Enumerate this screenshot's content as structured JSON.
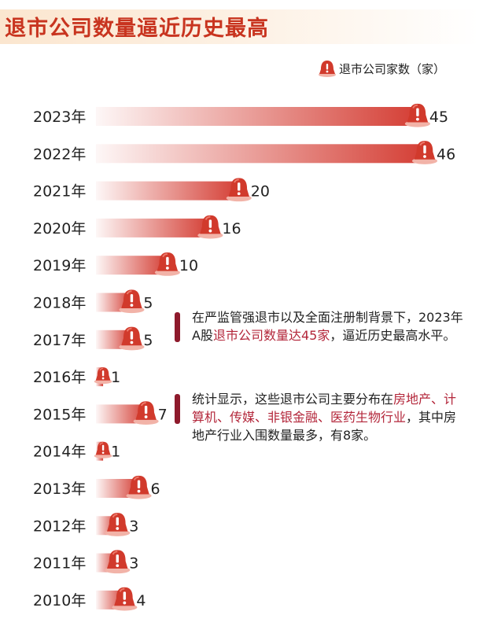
{
  "title": "退市公司数量逼近历史最高",
  "legend": {
    "label": "退市公司家数（家）",
    "icon": "alert-bell-icon",
    "color": "#d13a2c"
  },
  "colors": {
    "bar": "#d2342a",
    "title": "#c8341f",
    "note_mark": "#8e1a2c",
    "highlight": "#b3263a"
  },
  "chart_data": {
    "type": "bar",
    "orientation": "horizontal",
    "categories": [
      "2023年",
      "2022年",
      "2021年",
      "2020年",
      "2019年",
      "2018年",
      "2017年",
      "2016年",
      "2015年",
      "2014年",
      "2013年",
      "2012年",
      "2011年",
      "2010年"
    ],
    "series": [
      {
        "name": "退市公司家数（家）",
        "values": [
          45,
          46,
          20,
          16,
          10,
          5,
          5,
          1,
          7,
          1,
          6,
          3,
          3,
          4
        ]
      }
    ],
    "title": "退市公司数量逼近历史最高",
    "xlabel": "",
    "ylabel": "",
    "xlim": [
      0,
      46
    ],
    "grid": false,
    "legend_position": "top-right"
  },
  "notes": [
    {
      "parts": [
        {
          "text": "在严监管强退市以及全面注册制背景下，2023年A股",
          "highlight": false
        },
        {
          "text": "退市公司数量达45家",
          "highlight": true
        },
        {
          "text": "，逼近历史最高水平。",
          "highlight": false
        }
      ]
    },
    {
      "parts": [
        {
          "text": "统计显示，这些退市公司主要分布在",
          "highlight": false
        },
        {
          "text": "房地产、计算机、传媒、非银金融、医药生物行业",
          "highlight": true
        },
        {
          "text": "，其中房地产行业入围数量最多，有8家。",
          "highlight": false
        }
      ]
    }
  ]
}
